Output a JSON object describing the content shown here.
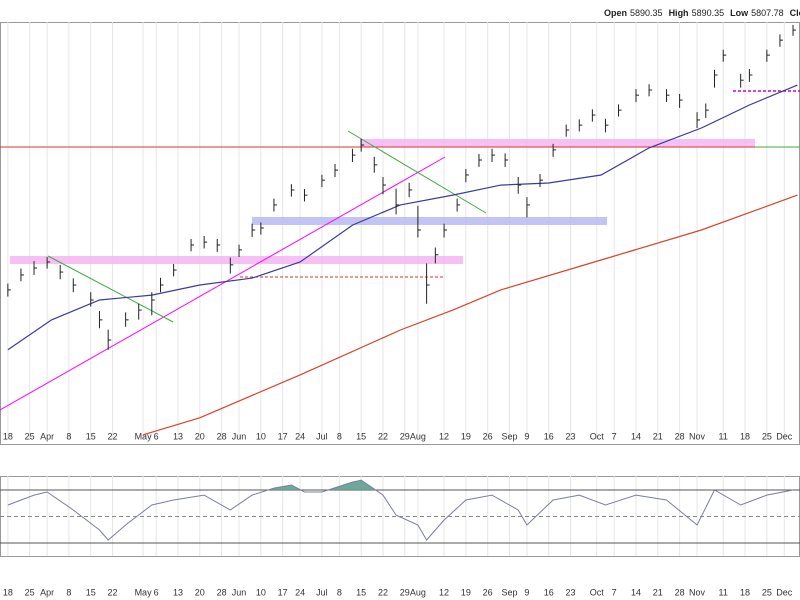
{
  "header": {
    "open_label": "Open",
    "open": 5890.35,
    "high_label": "High",
    "high": 5890.35,
    "low_label": "Low",
    "low": 5807.78,
    "close_label": "Close"
  },
  "chart_data": [
    {
      "type": "ohlc",
      "xlim": [
        -1.8,
        181.6
      ],
      "ylim": [
        4627,
        6078
      ],
      "bar_color": "#222222",
      "xticks": [
        {
          "value": 0,
          "label": "18"
        },
        {
          "value": 5,
          "label": "25"
        },
        {
          "value": 9,
          "label": "Apr"
        },
        {
          "value": 14,
          "label": "8"
        },
        {
          "value": 19,
          "label": "15"
        },
        {
          "value": 24,
          "label": "22"
        },
        {
          "value": 31,
          "label": "May"
        },
        {
          "value": 34,
          "label": "6"
        },
        {
          "value": 39,
          "label": "13"
        },
        {
          "value": 44,
          "label": "20"
        },
        {
          "value": 49,
          "label": "28"
        },
        {
          "value": 53,
          "label": "Jun"
        },
        {
          "value": 58,
          "label": "10"
        },
        {
          "value": 63,
          "label": "17"
        },
        {
          "value": 67,
          "label": "24"
        },
        {
          "value": 72,
          "label": "Jul"
        },
        {
          "value": 76,
          "label": "8"
        },
        {
          "value": 81,
          "label": "15"
        },
        {
          "value": 86,
          "label": "22"
        },
        {
          "value": 91,
          "label": "29"
        },
        {
          "value": 94,
          "label": "Aug"
        },
        {
          "value": 100,
          "label": "12"
        },
        {
          "value": 105,
          "label": "19"
        },
        {
          "value": 110,
          "label": "26"
        },
        {
          "value": 115,
          "label": "Sep"
        },
        {
          "value": 119,
          "label": "9"
        },
        {
          "value": 124,
          "label": "16"
        },
        {
          "value": 129,
          "label": "23"
        },
        {
          "value": 135,
          "label": "Oct"
        },
        {
          "value": 139,
          "label": "7"
        },
        {
          "value": 144,
          "label": "14"
        },
        {
          "value": 149,
          "label": "21"
        },
        {
          "value": 154,
          "label": "28"
        },
        {
          "value": 158,
          "label": "Nov"
        },
        {
          "value": 164,
          "label": "11"
        },
        {
          "value": 169,
          "label": "18"
        },
        {
          "value": 174,
          "label": "25"
        },
        {
          "value": 178,
          "label": "Dec"
        }
      ],
      "x": [
        0,
        3,
        6,
        9,
        12,
        15,
        19,
        21,
        23,
        27,
        30,
        33,
        35,
        38,
        42,
        45,
        48,
        51,
        53,
        56,
        58,
        61,
        65,
        68,
        72,
        75,
        79,
        81,
        84,
        86,
        89,
        92,
        94,
        96,
        98,
        100,
        103,
        105,
        108,
        111,
        114,
        117,
        119,
        122,
        125,
        128,
        131,
        134,
        137,
        140,
        144,
        147,
        151,
        154,
        158,
        160,
        162,
        164,
        168,
        170,
        174,
        177,
        180
      ],
      "high": [
        5170,
        5222,
        5248,
        5262,
        5235,
        5188,
        5140,
        5075,
        5010,
        5070,
        5100,
        5140,
        5190,
        5238,
        5325,
        5335,
        5325,
        5260,
        5305,
        5378,
        5382,
        5465,
        5515,
        5498,
        5548,
        5585,
        5638,
        5672,
        5610,
        5540,
        5500,
        5520,
        5440,
        5240,
        5295,
        5378,
        5465,
        5568,
        5620,
        5638,
        5622,
        5540,
        5470,
        5550,
        5655,
        5722,
        5740,
        5775,
        5742,
        5792,
        5845,
        5862,
        5845,
        5828,
        5765,
        5795,
        5912,
        5982,
        5898,
        5915,
        5982,
        6035,
        6068
      ],
      "low": [
        5125,
        5178,
        5200,
        5222,
        5185,
        5140,
        5090,
        5015,
        4940,
        5020,
        5045,
        5060,
        5140,
        5195,
        5282,
        5292,
        5280,
        5205,
        5262,
        5332,
        5340,
        5420,
        5472,
        5455,
        5505,
        5540,
        5592,
        5628,
        5555,
        5480,
        5410,
        5470,
        5330,
        5100,
        5240,
        5330,
        5420,
        5522,
        5575,
        5592,
        5575,
        5482,
        5400,
        5505,
        5610,
        5680,
        5698,
        5732,
        5695,
        5750,
        5800,
        5820,
        5800,
        5780,
        5710,
        5745,
        5850,
        5940,
        5850,
        5870,
        5940,
        5992,
        6030
      ],
      "close": [
        5148,
        5200,
        5224,
        5245,
        5210,
        5165,
        5113,
        5044,
        4974,
        5044,
        5078,
        5113,
        5165,
        5217,
        5304,
        5314,
        5304,
        5235,
        5287,
        5356,
        5363,
        5443,
        5495,
        5477,
        5529,
        5564,
        5616,
        5651,
        5582,
        5512,
        5443,
        5495,
        5356,
        5165,
        5270,
        5356,
        5443,
        5547,
        5599,
        5616,
        5599,
        5512,
        5443,
        5529,
        5634,
        5703,
        5720,
        5755,
        5720,
        5772,
        5824,
        5842,
        5824,
        5807,
        5738,
        5772,
        5894,
        5963,
        5876,
        5894,
        5963,
        6015,
        6050
      ],
      "overlays": [
        {
          "color": "#3b3b99",
          "x": [
            0,
            10,
            21,
            33,
            44,
            56,
            67,
            79,
            90,
            102,
            113,
            124,
            136,
            147,
            159,
            170,
            181
          ],
          "values": [
            4940,
            5044,
            5113,
            5130,
            5165,
            5189,
            5245,
            5373,
            5443,
            5477,
            5512,
            5519,
            5547,
            5641,
            5710,
            5790,
            5859
          ]
        },
        {
          "color": "#d9432b",
          "x": [
            31,
            44,
            67,
            90,
            102,
            113,
            136,
            159,
            181
          ],
          "values": [
            4645,
            4704,
            4853,
            5009,
            5078,
            5148,
            5252,
            5356,
            5477
          ]
        }
      ]
    },
    {
      "type": "line",
      "xlim": [
        -1.8,
        181.6
      ],
      "ylim": [
        20.2,
        80.6
      ],
      "color": "#7a7f99",
      "overbought_fill": "#5e9e92",
      "levels": [
        30,
        50,
        70
      ],
      "x": [
        0,
        6,
        9,
        15,
        21,
        23,
        27,
        33,
        38,
        45,
        51,
        56,
        61,
        65,
        68,
        72,
        79,
        81,
        86,
        89,
        94,
        96,
        100,
        105,
        111,
        117,
        119,
        125,
        131,
        137,
        144,
        151,
        158,
        162,
        168,
        174,
        180
      ],
      "values": [
        58.7,
        66.2,
        68.5,
        54.9,
        39.8,
        32.3,
        43.6,
        58.7,
        62.5,
        66.2,
        54.9,
        66.2,
        71.5,
        73.8,
        68.5,
        68.5,
        76,
        77.5,
        66.2,
        51.1,
        43.6,
        32.3,
        47.4,
        62.5,
        66.2,
        54.9,
        43.6,
        62.5,
        66.2,
        58.7,
        66.2,
        62.5,
        43.6,
        70,
        58.7,
        66.2,
        70
      ]
    }
  ]
}
